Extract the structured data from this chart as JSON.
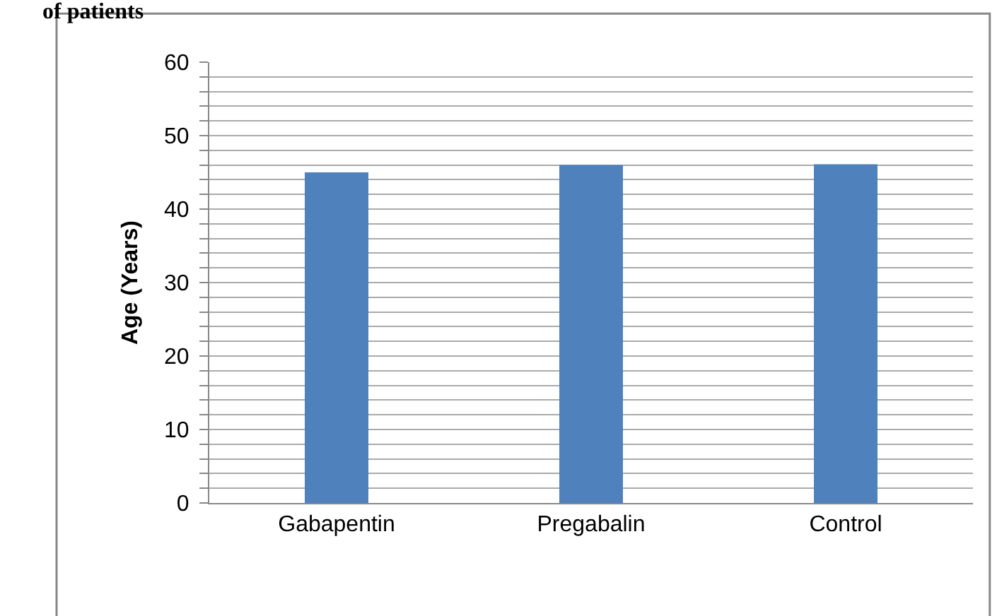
{
  "chart_data": {
    "type": "bar",
    "title": "of patients",
    "ylabel": "Age (Years)",
    "categories": [
      "Gabapentin",
      "Pregabalin",
      "Control"
    ],
    "values": [
      45.0,
      46.0,
      46.1
    ],
    "color": "#4f81bd",
    "ylim": [
      0,
      60
    ],
    "yticks": [
      0,
      {
        "value": 2,
        "label": null
      },
      {
        "value": 4,
        "label": null
      },
      {
        "value": 6,
        "label": null
      },
      {
        "value": 8,
        "label": null
      },
      10,
      {
        "value": 12,
        "label": null
      },
      {
        "value": 14,
        "label": null
      },
      {
        "value": 16,
        "label": null
      },
      {
        "value": 18,
        "label": null
      },
      20,
      {
        "value": 22,
        "label": null
      },
      {
        "value": 24,
        "label": null
      },
      {
        "value": 26,
        "label": null
      },
      {
        "value": 28,
        "label": null
      },
      30,
      {
        "value": 32,
        "label": null
      },
      {
        "value": 34,
        "label": null
      },
      {
        "value": 36,
        "label": null
      },
      {
        "value": 38,
        "label": null
      },
      40,
      {
        "value": 42,
        "label": null
      },
      {
        "value": 44,
        "label": null
      },
      {
        "value": 46,
        "label": null
      },
      {
        "value": 48,
        "label": null
      },
      50,
      {
        "value": 52,
        "label": null
      },
      {
        "value": 54,
        "label": null
      },
      {
        "value": 56,
        "label": null
      },
      {
        "value": 58,
        "label": null
      },
      60
    ],
    "grid": true
  }
}
